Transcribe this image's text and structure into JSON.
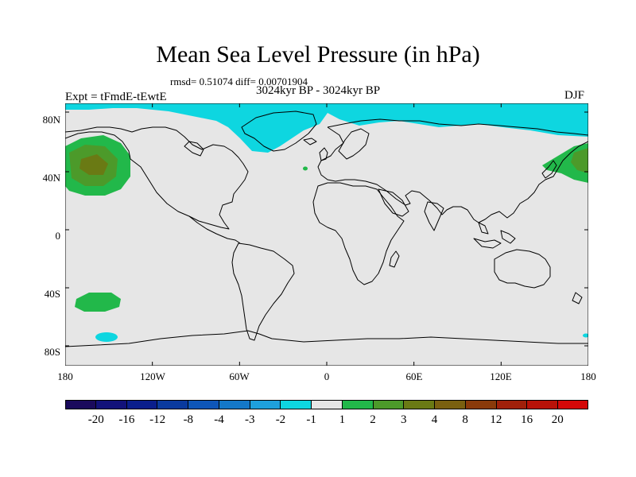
{
  "title": "Mean Sea Level Pressure (in hPa)",
  "stats": "rmsd= 0.51074 diff= 0.00701904",
  "period": "3024kyr BP - 3024kyr BP",
  "experiment": "Expt = tFmdE-tEwtE",
  "season": "DJF",
  "map": {
    "lat_labels": [
      "80N",
      "40N",
      "0",
      "40S",
      "80S"
    ],
    "lon_labels": [
      "180",
      "120W",
      "60W",
      "0",
      "60E",
      "120E",
      "180"
    ],
    "lat_range": [
      -90,
      90
    ],
    "lon_range": [
      -180,
      180
    ]
  },
  "colorbar": {
    "labels": [
      "-20",
      "-16",
      "-12",
      "-8",
      "-4",
      "-3",
      "-2",
      "-1",
      "1",
      "2",
      "3",
      "4",
      "8",
      "12",
      "16",
      "20"
    ],
    "colors": [
      "#1a0a5c",
      "#12127a",
      "#0a1e8c",
      "#0a3a9e",
      "#0e56b8",
      "#1478c8",
      "#1ea0dc",
      "#0ed6e0",
      "#e6e6e6",
      "#22b84a",
      "#4c9a2a",
      "#6a7a14",
      "#7a6010",
      "#8a3a0a",
      "#a0200a",
      "#b81208",
      "#d40808"
    ]
  },
  "colors": {
    "background": "#e6e6e6",
    "negative_1_2": "#0ed6e0",
    "positive_1_2": "#22b84a",
    "positive_2_3": "#4c9a2a",
    "positive_3_4": "#6a7a14"
  }
}
